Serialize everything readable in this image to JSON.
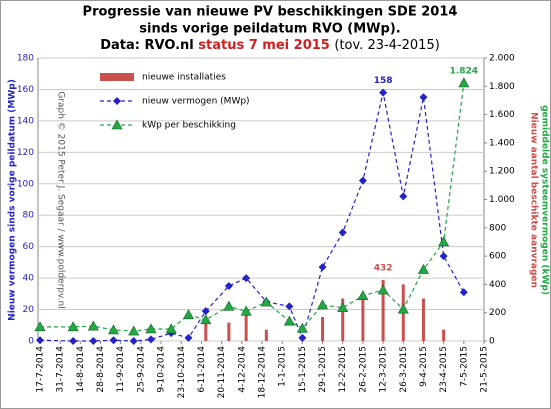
{
  "chart_data": {
    "type": "combo",
    "title": [
      "Progressie van nieuwe PV beschikkingen SDE 2014",
      "sinds vorige peildatum RVO (MWp)."
    ],
    "subtitle": {
      "source": "Data: RVO.nl",
      "status": "status 7 mei 2015",
      "reference": "(tov. 23-4-2015)"
    },
    "watermark": "Graph © 2015 Peter J. Segaar / www.polderpv.nl",
    "ylabel": "Nieuw vermogen sinds vorige peildatum (MWp)",
    "y2label": [
      "Nieuw aantal beschikte aanvragen",
      "gemiddelde systeemvermogen (kWp)"
    ],
    "x": [
      "17-7-2014",
      "9-8-2014",
      "23-8-2014",
      "6-9-2014",
      "20-9-2014",
      "2-10-2014",
      "16-10-2014",
      "28-10-2014",
      "9-11-2014",
      "25-11-2014",
      "7-12-2014",
      "21-12-2014",
      "6-1-2015",
      "15-1-2015",
      "29-1-2015",
      "12-2-2015",
      "26-2-2015",
      "12-3-2015",
      "26-3-2015",
      "9-4-2015",
      "23-4-2015",
      "7-5-2015"
    ],
    "xlim": [
      "17-7-2014",
      "21-5-2015"
    ],
    "xticks": [
      "17-7-2014",
      "31-7-2014",
      "14-8-2014",
      "28-8-2014",
      "11-9-2014",
      "25-9-2014",
      "9-10-2014",
      "23-10-2014",
      "6-11-2014",
      "20-11-2014",
      "4-12-2014",
      "18-12-2014",
      "1-1-2015",
      "15-1-2015",
      "29-1-2015",
      "12-2-2015",
      "26-2-2015",
      "12-3-2015",
      "26-3-2015",
      "9-4-2015",
      "23-4-2015",
      "7-5-2015",
      "21-5-2015"
    ],
    "ylim": [
      0,
      180
    ],
    "yticks": [
      0,
      20,
      40,
      60,
      80,
      100,
      120,
      140,
      160,
      180
    ],
    "y2lim": [
      0,
      2000
    ],
    "y2ticks": [
      0,
      200,
      400,
      600,
      800,
      {
        "value": 1000,
        "label": "1.000"
      },
      {
        "value": 1200,
        "label": "1.200"
      },
      {
        "value": 1400,
        "label": "1.400"
      },
      {
        "value": 1600,
        "label": "1.600"
      },
      {
        "value": 1800,
        "label": "1.800"
      },
      {
        "value": 2000,
        "label": "2.000"
      }
    ],
    "grid": true,
    "legend": "upper left",
    "series": [
      {
        "name": "nieuwe installaties",
        "kind": "bar",
        "axis": "y2",
        "color": "#c9504d",
        "values": [
          null,
          null,
          null,
          null,
          null,
          null,
          null,
          null,
          150,
          130,
          200,
          80,
          null,
          null,
          170,
          300,
          320,
          432,
          400,
          300,
          80,
          null
        ],
        "labeled": 17
      },
      {
        "name": "nieuw vermogen (MWp)",
        "kind": "line",
        "marker": "diamond",
        "color": "#2323c8",
        "values": [
          0.5,
          0,
          0,
          0.5,
          0,
          1,
          5,
          2,
          19,
          35,
          40,
          25,
          22,
          2,
          47,
          69,
          102,
          158,
          92,
          155,
          54,
          31
        ],
        "labeled": 17
      },
      {
        "name": "kWp per beschikking",
        "kind": "line",
        "marker": "triangle",
        "axis": "y2",
        "color": "#22a844",
        "values": [
          100,
          100,
          105,
          78,
          70,
          85,
          85,
          185,
          150,
          245,
          210,
          275,
          140,
          90,
          255,
          235,
          320,
          360,
          225,
          505,
          700,
          1824
        ],
        "value_labels": [
          null,
          null,
          null,
          null,
          null,
          null,
          null,
          null,
          null,
          null,
          null,
          null,
          null,
          null,
          null,
          null,
          null,
          null,
          null,
          null,
          null,
          "1.824"
        ],
        "labeled": 21
      }
    ]
  }
}
